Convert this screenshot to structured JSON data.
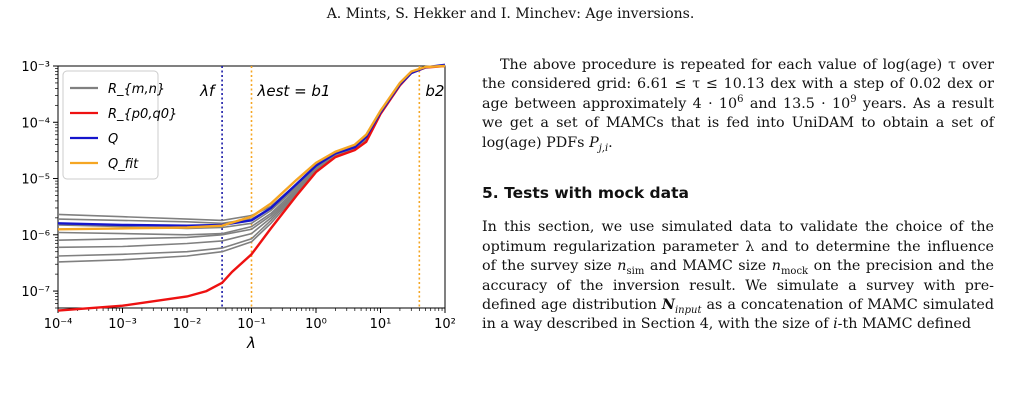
{
  "header": "A. Mints, S. Hekker and I. Minchev: Age inversions.",
  "chart_data": {
    "type": "line",
    "xlabel": "λ",
    "xscale": "log",
    "yscale": "log",
    "xlim": [
      0.0001,
      100
    ],
    "ylim": [
      5e-08,
      0.001
    ],
    "x_ticks": [
      "10⁻⁴",
      "10⁻³",
      "10⁻²",
      "10⁻¹",
      "10⁰",
      "10¹",
      "10²"
    ],
    "y_ticks": [
      "10⁻⁷",
      "10⁻⁶",
      "10⁻⁵",
      "10⁻⁴",
      "10⁻³"
    ],
    "legend_position": "top-left",
    "legend": [
      "R_{m,n}",
      "R_{p0,q0}",
      "Q",
      "Q_fit"
    ],
    "annotations": [
      "λf",
      "λest = b1",
      "b2"
    ],
    "vlines": [
      {
        "x": 0.035,
        "color": "#1a1aa6",
        "label": "λf"
      },
      {
        "x": 0.1,
        "color": "#f5a623",
        "label": "λest = b1"
      },
      {
        "x": 40,
        "color": "#f5a623",
        "label": "b2"
      }
    ],
    "colors": {
      "Rmn": "#808080",
      "Rp0q0": "#ee1111",
      "Q": "#1515cc",
      "Qfit": "#f5a623"
    },
    "series": [
      {
        "name": "R_{p0,q0}",
        "color": "#ee1111",
        "x": [
          0.0001,
          0.001,
          0.01,
          0.02,
          0.035,
          0.05,
          0.1,
          0.2,
          0.5,
          1,
          2,
          4,
          6,
          10,
          20,
          30,
          50,
          100
        ],
        "y": [
          4.5e-08,
          5.5e-08,
          8e-08,
          1e-07,
          1.4e-07,
          2.2e-07,
          4.5e-07,
          1.3e-06,
          5e-06,
          1.3e-05,
          2.4e-05,
          3.2e-05,
          4.5e-05,
          0.00014,
          0.00045,
          0.00075,
          0.00094,
          0.001
        ]
      },
      {
        "name": "Q",
        "color": "#1515cc",
        "x": [
          0.0001,
          0.001,
          0.01,
          0.035,
          0.1,
          0.2,
          0.5,
          1,
          2,
          4,
          6,
          10,
          20,
          30,
          50,
          100
        ],
        "y": [
          1.6e-06,
          1.5e-06,
          1.45e-06,
          1.5e-06,
          1.8e-06,
          3e-06,
          8e-06,
          1.7e-05,
          2.8e-05,
          3.6e-05,
          5.5e-05,
          0.00015,
          0.00047,
          0.00075,
          0.00095,
          0.00105
        ]
      },
      {
        "name": "Q_fit",
        "color": "#f5a623",
        "x": [
          0.0001,
          0.001,
          0.01,
          0.035,
          0.1,
          0.2,
          0.5,
          1,
          2,
          4,
          6,
          10,
          20,
          30,
          50,
          100
        ],
        "y": [
          1.25e-06,
          1.3e-06,
          1.35e-06,
          1.45e-06,
          2.1e-06,
          3.6e-06,
          9.5e-06,
          1.9e-05,
          3e-05,
          4e-05,
          6e-05,
          0.00016,
          0.0005,
          0.0008,
          0.00096,
          0.001
        ]
      }
    ],
    "gray_series": [
      {
        "x": [
          0.0001,
          0.001,
          0.01,
          0.035,
          0.1,
          0.2,
          0.5,
          1,
          2,
          4,
          6,
          10,
          20,
          30,
          50,
          100
        ],
        "y": [
          2.3e-06,
          2.1e-06,
          1.9e-06,
          1.8e-06,
          2.2e-06,
          3.2e-06,
          8e-06,
          1.6e-05,
          2.7e-05,
          3.5e-05,
          5.2e-05,
          0.00015,
          0.00046,
          0.00076,
          0.00094,
          0.001
        ]
      },
      {
        "x": [
          0.0001,
          0.001,
          0.01,
          0.035,
          0.1,
          0.2,
          0.5,
          1,
          2,
          4,
          6,
          10,
          20,
          30,
          50,
          100
        ],
        "y": [
          1.9e-06,
          1.8e-06,
          1.7e-06,
          1.6e-06,
          1.9e-06,
          3e-06,
          7.5e-06,
          1.6e-05,
          2.7e-05,
          3.5e-05,
          5.2e-05,
          0.00015,
          0.00046,
          0.00076,
          0.00094,
          0.001
        ]
      },
      {
        "x": [
          0.0001,
          0.001,
          0.01,
          0.035,
          0.1,
          0.2,
          0.5,
          1,
          2,
          4,
          6,
          10,
          20,
          30,
          50,
          100
        ],
        "y": [
          1.5e-06,
          1.4e-06,
          1.3e-06,
          1.35e-06,
          1.6e-06,
          2.7e-06,
          7e-06,
          1.5e-05,
          2.6e-05,
          3.4e-05,
          5e-05,
          0.00015,
          0.00046,
          0.00075,
          0.00094,
          0.001
        ]
      },
      {
        "x": [
          0.0001,
          0.001,
          0.01,
          0.035,
          0.1,
          0.2,
          0.5,
          1,
          2,
          4,
          6,
          10,
          20,
          30,
          50,
          100
        ],
        "y": [
          1.1e-06,
          1.05e-06,
          1e-06,
          1.05e-06,
          1.4e-06,
          2.4e-06,
          6.5e-06,
          1.5e-05,
          2.6e-05,
          3.4e-05,
          5e-05,
          0.00015,
          0.00046,
          0.00075,
          0.00094,
          0.001
        ]
      },
      {
        "x": [
          0.0001,
          0.001,
          0.01,
          0.035,
          0.1,
          0.2,
          0.5,
          1,
          2,
          4,
          6,
          10,
          20,
          30,
          50,
          100
        ],
        "y": [
          8e-07,
          8.5e-07,
          9e-07,
          1e-06,
          1.25e-06,
          2.2e-06,
          6e-06,
          1.45e-05,
          2.5e-05,
          3.3e-05,
          5e-05,
          0.00015,
          0.00046,
          0.00075,
          0.00094,
          0.001
        ]
      },
      {
        "x": [
          0.0001,
          0.001,
          0.01,
          0.035,
          0.1,
          0.2,
          0.5,
          1,
          2,
          4,
          6,
          10,
          20,
          30,
          50,
          100
        ],
        "y": [
          4.2e-07,
          4.5e-07,
          5e-07,
          5.8e-07,
          8.5e-07,
          1.8e-06,
          5.5e-06,
          1.4e-05,
          2.5e-05,
          3.3e-05,
          5e-05,
          0.00015,
          0.00046,
          0.00075,
          0.00094,
          0.001
        ]
      },
      {
        "x": [
          0.0001,
          0.001,
          0.01,
          0.035,
          0.1,
          0.2,
          0.5,
          1,
          2,
          4,
          6,
          10,
          20,
          30,
          50,
          100
        ],
        "y": [
          3.3e-07,
          3.6e-07,
          4.2e-07,
          5e-07,
          7.5e-07,
          1.6e-06,
          5.2e-06,
          1.4e-05,
          2.5e-05,
          3.3e-05,
          5e-05,
          0.00015,
          0.00046,
          0.00075,
          0.00094,
          0.001
        ]
      },
      {
        "x": [
          0.0001,
          0.001,
          0.01,
          0.035,
          0.1,
          0.2,
          0.5,
          1,
          2,
          4,
          6,
          10,
          20,
          30,
          50,
          100
        ],
        "y": [
          6e-07,
          6.2e-07,
          7e-07,
          7.8e-07,
          1.05e-06,
          2e-06,
          5.8e-06,
          1.45e-05,
          2.5e-05,
          3.3e-05,
          5e-05,
          0.00015,
          0.00046,
          0.00075,
          0.00094,
          0.001
        ]
      }
    ]
  },
  "text": {
    "p1": "The above procedure is repeated for each value of log(age) τ over the considered grid: 6.61 ≤ τ ≤ 10.13 dex with a step of 0.02 dex or age between approximately 4 · 10",
    "p1_sup1": "6",
    "p1_mid": " and 13.5 · 10",
    "p1_sup2": "9",
    "p1_end": " years. As a result we get a set of MAMCs that is fed into UniDAM to obtain a set of log(age) PDFs ",
    "p1_var": "P",
    "p1_sub": "j,i",
    "p1_dot": ".",
    "section_title": "5. Tests with mock data",
    "p2_a": "In this section, we use simulated data to validate the choice of the optimum regularization parameter λ and to determine the influence of the survey size ",
    "p2_n": "n",
    "p2_nsub": "sim",
    "p2_b": " and MAMC size ",
    "p2_n2": "n",
    "p2_n2sub": "mock",
    "p2_c": " on the precision and the accuracy of the inversion result. We simulate a survey with pre-defined age distribution ",
    "p2_N": "N",
    "p2_Nsub": "input",
    "p2_d": " as a concatenation of MAMC simulated in a way described in Section 4, with the size of ",
    "p2_i": "i",
    "p2_e": "-th MAMC defined"
  }
}
